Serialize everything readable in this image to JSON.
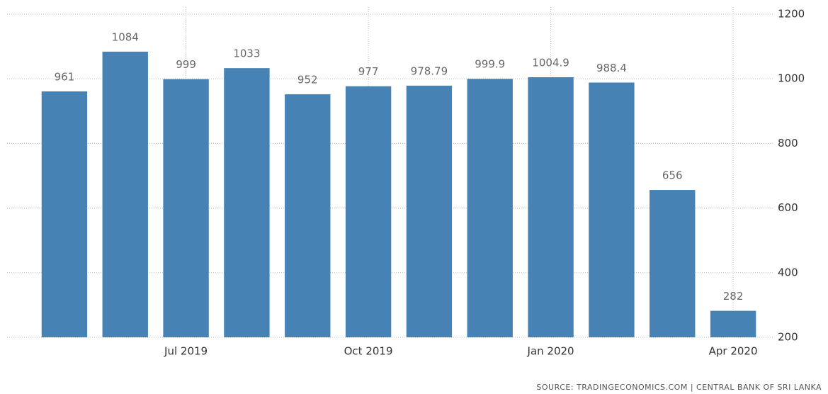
{
  "chart_data": {
    "type": "bar",
    "categories": [
      null,
      null,
      "Jul 2019",
      null,
      null,
      "Oct 2019",
      null,
      null,
      "Jan 2020",
      null,
      null,
      "Apr 2020"
    ],
    "values": [
      961,
      1084,
      999,
      1033,
      952,
      977,
      978.79,
      999.9,
      1004.9,
      988.4,
      656,
      282
    ],
    "color": "#4682b4",
    "ylim": [
      200,
      1200
    ],
    "yticks": [
      200,
      400,
      600,
      800,
      1000,
      1200
    ],
    "grid": true,
    "y_axis_side": "right",
    "source": "SOURCE: TRADINGECONOMICS.COM | CENTRAL BANK OF SRI LANKA"
  }
}
